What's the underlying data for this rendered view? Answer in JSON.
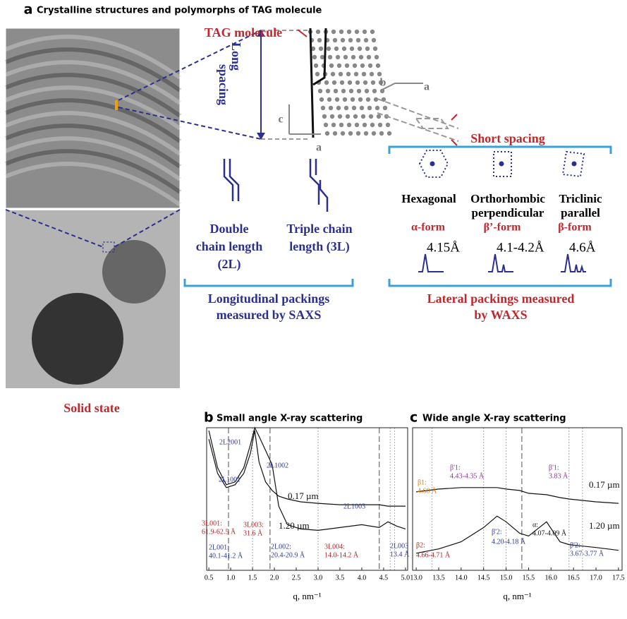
{
  "panel_a": {
    "letter": "a",
    "title": "Crystalline structures and polymorphs of TAG molecule",
    "image_label": "Solid state",
    "tag_molecule": "TAG molecule",
    "long_spacing": [
      "Long",
      "spacing"
    ],
    "short_spacing": "Short spacing",
    "axis_letters": [
      "c",
      "a",
      "b",
      "a"
    ],
    "forms": [
      {
        "name": [
          "Hexagonal"
        ],
        "form": "α-form",
        "spacing": "4.15Å"
      },
      {
        "name": [
          "Orthorhombic",
          "perpendicular"
        ],
        "form": "β’-form",
        "spacing": "4.1-4.2Å"
      },
      {
        "name": [
          "Triclinic",
          "parallel"
        ],
        "form": "β-form",
        "spacing": "4.6Å"
      }
    ],
    "chains": [
      {
        "lines": [
          "Double",
          "chain length",
          "(2L)"
        ]
      },
      {
        "lines": [
          "Triple chain",
          "length (3L)"
        ]
      }
    ],
    "saxs_caption": [
      "Longitudinal packings",
      "measured by SAXS"
    ],
    "waxs_caption": [
      "Lateral packings measured",
      "by WAXS"
    ]
  },
  "chart_data": [
    {
      "type": "line",
      "letter": "b",
      "title": "Small angle X-ray scattering",
      "x_label": "q, nm⁻¹",
      "xlim": [
        0.45,
        5.05
      ],
      "ylim": [
        0,
        100
      ],
      "xticks": [
        0.5,
        {
          "value": 1,
          "label": "1.0"
        },
        1.5,
        {
          "value": 2,
          "label": "2.0"
        },
        2.5,
        {
          "value": 3,
          "label": "3.0"
        },
        3.5,
        {
          "value": 4,
          "label": "4.0"
        },
        4.5,
        {
          "value": 5,
          "label": "5.0"
        }
      ],
      "x": [
        0.5,
        0.7,
        0.9,
        1.1,
        1.3,
        1.45,
        1.55,
        1.65,
        1.8,
        1.95,
        2.1,
        2.3,
        2.6,
        3.0,
        3.5,
        4.0,
        4.4,
        4.6,
        4.8,
        5.0
      ],
      "series": [
        {
          "name": "0.17 µm",
          "color": "#111111",
          "values": [
            92,
            68,
            58,
            60,
            68,
            82,
            98,
            76,
            62,
            56,
            52,
            50,
            48,
            47,
            46,
            46,
            46,
            45,
            45,
            45
          ]
        },
        {
          "name": "1.20 µm",
          "color": "#111111",
          "values": [
            98,
            72,
            60,
            62,
            72,
            88,
            100,
            94,
            84,
            74,
            45,
            32,
            29,
            28,
            30,
            32,
            30,
            34,
            31,
            29
          ]
        }
      ],
      "ref_lines": [
        {
          "value": 0.95,
          "style": "dashed"
        },
        {
          "value": 1.5,
          "style": "dotted"
        },
        {
          "value": 1.9,
          "style": "dashed"
        },
        {
          "value": 3.0,
          "style": "dotted"
        },
        {
          "value": 4.4,
          "style": "dashed"
        },
        {
          "value": 4.65,
          "style": "dotted"
        },
        {
          "value": 4.75,
          "style": "dotted"
        }
      ],
      "annotations": [
        {
          "text": "2L2001",
          "color": "#2b3a9b"
        },
        {
          "text": "2L1002",
          "color": "#2b3a9b"
        },
        {
          "text": "2L1001",
          "color": "#2b3a9b"
        },
        {
          "text": "2L1003",
          "color": "#2b3a9b"
        },
        {
          "text": "3L001:",
          "color": "#b22222"
        },
        {
          "text": "61.9-62.5 Å",
          "color": "#b22222"
        },
        {
          "text": "3L003:",
          "color": "#b22222"
        },
        {
          "text": "31.6 Å",
          "color": "#b22222"
        },
        {
          "text": "2L001:",
          "color": "#2b3a9b"
        },
        {
          "text": "40.1-41.2 Å",
          "color": "#2b3a9b"
        },
        {
          "text": "2L002:",
          "color": "#2b3a9b"
        },
        {
          "text": "20.4-20.9 Å",
          "color": "#2b3a9b"
        },
        {
          "text": "3L004:",
          "color": "#b22222"
        },
        {
          "text": "14.0-14.2 Å",
          "color": "#b22222"
        },
        {
          "text": "2L003",
          "color": "#2b3a9b"
        },
        {
          "text": "13.4 Å",
          "color": "#2b3a9b"
        }
      ]
    },
    {
      "type": "line",
      "letter": "c",
      "title": "Wide angle X-ray scattering",
      "x_label": "q, nm⁻¹",
      "xlim": [
        12.92,
        17.58
      ],
      "ylim": [
        0,
        100
      ],
      "xticks": [
        {
          "value": 13,
          "label": "13.0"
        },
        13.5,
        {
          "value": 14,
          "label": "14.0"
        },
        14.5,
        {
          "value": 15,
          "label": "15.0"
        },
        15.5,
        {
          "value": 16,
          "label": "16.0"
        },
        16.5,
        {
          "value": 17,
          "label": "17.0"
        },
        17.5
      ],
      "x": [
        13.0,
        13.5,
        14.0,
        14.5,
        14.8,
        15.0,
        15.3,
        15.5,
        15.9,
        16.2,
        16.4,
        16.7,
        17.0,
        17.5
      ],
      "series": [
        {
          "name": "0.17 µm",
          "color": "#111111",
          "values": [
            55,
            57,
            58,
            58,
            58,
            57,
            56,
            54,
            53,
            51,
            50,
            49,
            48,
            47
          ]
        },
        {
          "name": "1.20 µm",
          "color": "#111111",
          "values": [
            12,
            15,
            20,
            30,
            38,
            34,
            26,
            24,
            34,
            20,
            18,
            17,
            16,
            14
          ]
        }
      ],
      "ref_lines": [
        {
          "value": 13.35,
          "style": "dotted"
        },
        {
          "value": 14.5,
          "style": "dotted"
        },
        {
          "value": 15.0,
          "style": "dotted"
        },
        {
          "value": 15.35,
          "style": "dashed"
        },
        {
          "value": 16.4,
          "style": "dotted"
        },
        {
          "value": 16.7,
          "style": "dotted"
        }
      ],
      "annotations": [
        {
          "text": "β1:",
          "color": "#e07b00"
        },
        {
          "text": "4.60 Å",
          "color": "#e07b00"
        },
        {
          "text": "β'1:",
          "color": "#9b2f9b"
        },
        {
          "text": "4.43-4.35 Å",
          "color": "#9b2f9b"
        },
        {
          "text": "β'1:",
          "color": "#9b2f9b"
        },
        {
          "text": "3.83 Å",
          "color": "#9b2f9b"
        },
        {
          "text": "α:",
          "color": "#111111"
        },
        {
          "text": "4.07-4.09 Å",
          "color": "#111111"
        },
        {
          "text": "β'2:",
          "color": "#2b3a9b"
        },
        {
          "text": "4.20-4.18 Å",
          "color": "#2b3a9b"
        },
        {
          "text": "β'2:",
          "color": "#2b3a9b"
        },
        {
          "text": "3.67-3.77 Å",
          "color": "#2b3a9b"
        },
        {
          "text": "β2:",
          "color": "#b22222"
        },
        {
          "text": "4.66-4.71 Å",
          "color": "#b22222"
        }
      ]
    }
  ]
}
